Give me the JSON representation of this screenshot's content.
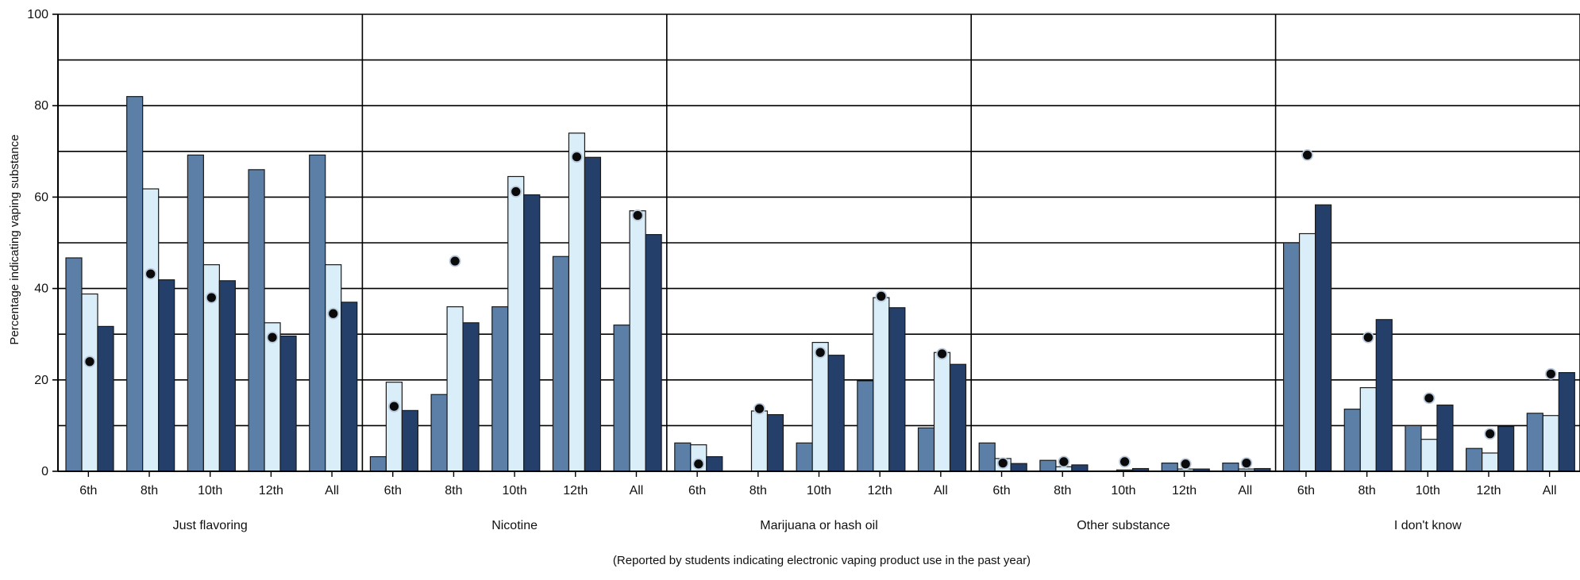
{
  "chart_data": {
    "type": "bar",
    "ylabel": "Percentage indicating vaping substance",
    "footnote": "(Reported by students indicating electronic vaping product use in the past year)",
    "ylim": [
      0,
      100
    ],
    "yticks": [
      0,
      20,
      40,
      60,
      80,
      100
    ],
    "grid": true,
    "groups": [
      "Just flavoring",
      "Nicotine",
      "Marijuana or hash oil",
      "Other substance",
      "I don't know"
    ],
    "categories": [
      "6th",
      "8th",
      "10th",
      "12th",
      "All"
    ],
    "series": [
      {
        "color": "#5b7fa6",
        "values": [
          [
            46.7,
            82.0,
            69.2,
            66.0,
            69.2
          ],
          [
            3.2,
            16.8,
            36.0,
            47.0,
            32.0
          ],
          [
            6.2,
            0.0,
            6.2,
            19.8,
            9.5
          ],
          [
            6.2,
            2.4,
            0.0,
            1.8,
            1.8
          ],
          [
            50.0,
            13.6,
            10.0,
            5.0,
            12.7
          ]
        ]
      },
      {
        "color": "#daeefa",
        "values": [
          [
            38.8,
            61.8,
            45.2,
            32.5,
            45.2
          ],
          [
            19.5,
            36.0,
            64.5,
            74.0,
            57.0
          ],
          [
            5.8,
            13.2,
            28.2,
            38.0,
            26.0
          ],
          [
            2.8,
            1.0,
            0.3,
            0.5,
            0.5
          ],
          [
            52.0,
            18.3,
            7.0,
            4.0,
            12.2
          ]
        ]
      },
      {
        "color": "#243f6a",
        "values": [
          [
            31.7,
            41.9,
            41.7,
            29.6,
            37.0
          ],
          [
            13.3,
            32.5,
            60.5,
            68.7,
            51.8
          ],
          [
            3.2,
            12.4,
            25.4,
            35.8,
            23.4
          ],
          [
            1.7,
            1.4,
            0.6,
            0.5,
            0.6
          ],
          [
            58.3,
            33.2,
            14.5,
            9.8,
            21.6
          ]
        ]
      }
    ],
    "markers": [
      [
        24.0,
        43.2,
        38.0,
        29.3,
        34.5
      ],
      [
        14.2,
        46.0,
        61.2,
        68.8,
        56.0
      ],
      [
        1.6,
        13.7,
        26.0,
        38.3,
        25.7
      ],
      [
        1.8,
        2.1,
        2.1,
        1.6,
        1.8
      ],
      [
        69.2,
        29.3,
        16.0,
        8.2,
        21.3
      ]
    ],
    "colors": {
      "marker_fill": "#0a0a0a",
      "marker_stroke": "#b9c8da",
      "grid": "#000000",
      "bar_stroke": "#1a1a1a"
    }
  }
}
